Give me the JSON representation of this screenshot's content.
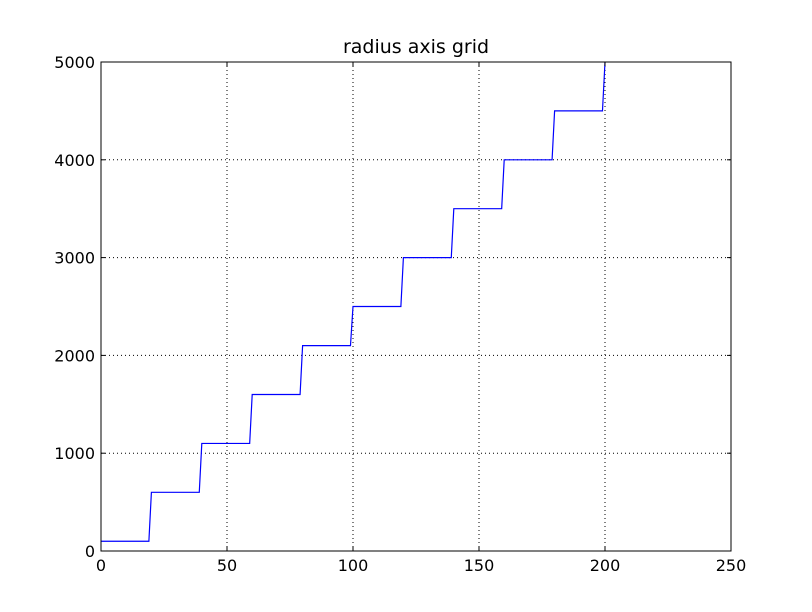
{
  "chart_data": {
    "type": "line",
    "title": "radius axis grid",
    "xlabel": "",
    "ylabel": "",
    "xlim": [
      0,
      250
    ],
    "ylim": [
      0,
      5000
    ],
    "xticks": [
      0,
      50,
      100,
      150,
      200,
      250
    ],
    "yticks": [
      0,
      1000,
      2000,
      3000,
      4000,
      5000
    ],
    "xtick_labels": [
      "0",
      "50",
      "100",
      "150",
      "200",
      "250"
    ],
    "ytick_labels": [
      "0",
      "1000",
      "2000",
      "3000",
      "4000",
      "5000"
    ],
    "grid": true,
    "line_color": "#0000ff",
    "series": [
      {
        "x": [
          0,
          19,
          20,
          39,
          40,
          59,
          60,
          79,
          80,
          99,
          100,
          119,
          120,
          139,
          140,
          159,
          160,
          179,
          180,
          199,
          200
        ],
        "y": [
          100,
          100,
          600,
          600,
          1100,
          1100,
          1600,
          1600,
          2100,
          2100,
          2500,
          2500,
          3000,
          3000,
          3500,
          3500,
          4000,
          4000,
          4500,
          4500,
          5000
        ]
      }
    ]
  }
}
